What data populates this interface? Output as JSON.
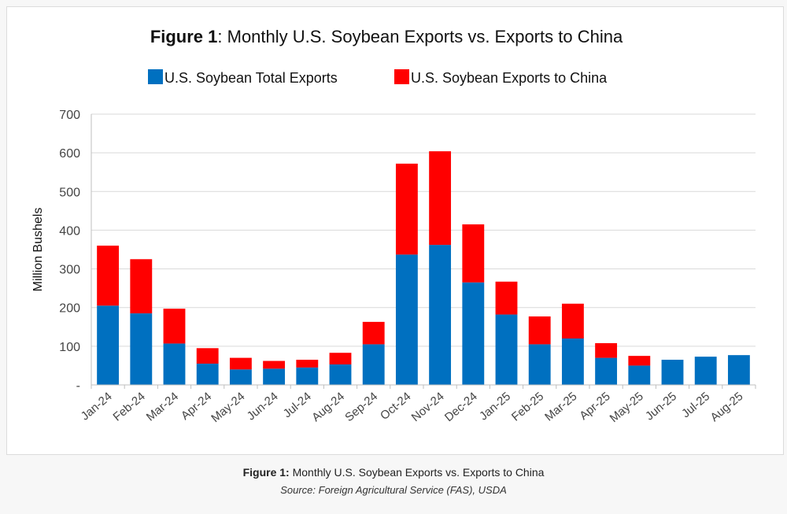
{
  "figure": {
    "title_bold": "Figure 1",
    "title_rest": ":  Monthly U.S. Soybean Exports vs. Exports to China"
  },
  "caption": {
    "label": "Figure 1:",
    "text": " Monthly U.S. Soybean Exports vs. Exports to China",
    "source": "Source: Foreign Agricultural Service (FAS), USDA"
  },
  "chart_data": {
    "type": "bar",
    "stacked": true,
    "title": "Figure 1:  Monthly U.S. Soybean Exports vs. Exports to China",
    "xlabel": "",
    "ylabel": "Million Bushels",
    "ylim": [
      0,
      700
    ],
    "yticks": [
      0,
      100,
      200,
      300,
      400,
      500,
      600,
      700
    ],
    "ytick_labels": [
      "-",
      "100",
      "200",
      "300",
      "400",
      "500",
      "600",
      "700"
    ],
    "grid": true,
    "legend_position": "top",
    "categories": [
      "Jan-24",
      "Feb-24",
      "Mar-24",
      "Apr-24",
      "May-24",
      "Jun-24",
      "Jul-24",
      "Aug-24",
      "Sep-24",
      "Oct-24",
      "Nov-24",
      "Dec-24",
      "Jan-25",
      "Feb-25",
      "Mar-25",
      "Apr-25",
      "May-25",
      "Jun-25",
      "Jul-25",
      "Aug-25"
    ],
    "series": [
      {
        "name": "U.S. Soybean Total Exports",
        "color": "#0070c0",
        "values": [
          205,
          185,
          107,
          55,
          40,
          42,
          45,
          53,
          105,
          337,
          362,
          265,
          182,
          105,
          120,
          70,
          50,
          65,
          73,
          77
        ]
      },
      {
        "name": "U.S. Soybean Exports to China",
        "color": "#ff0000",
        "values": [
          155,
          140,
          90,
          40,
          30,
          20,
          20,
          30,
          58,
          235,
          242,
          150,
          85,
          72,
          90,
          38,
          25,
          0,
          0,
          0
        ]
      }
    ]
  }
}
